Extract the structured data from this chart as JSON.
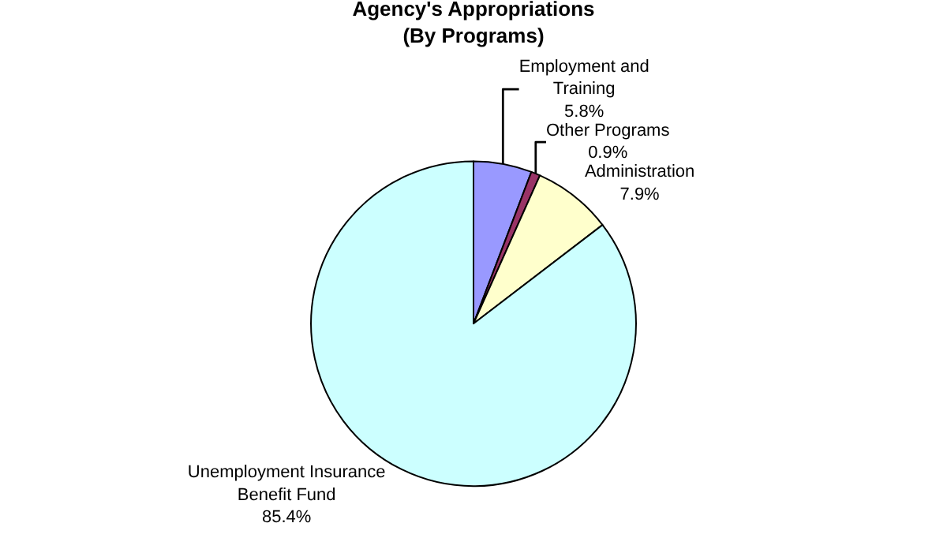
{
  "chart_data": {
    "type": "pie",
    "title": "Agency's Appropriations\n(By Programs)",
    "categories": [
      "Employment and Training",
      "Other Programs",
      "Administration",
      "Unemployment Insurance Benefit Fund"
    ],
    "values": [
      5.8,
      0.9,
      7.9,
      85.4
    ],
    "value_labels": [
      "5.8%",
      "0.9%",
      "7.9%",
      "85.4%"
    ],
    "colors": [
      "#9999ff",
      "#993366",
      "#ffffcc",
      "#ccffff"
    ],
    "legend": false
  }
}
